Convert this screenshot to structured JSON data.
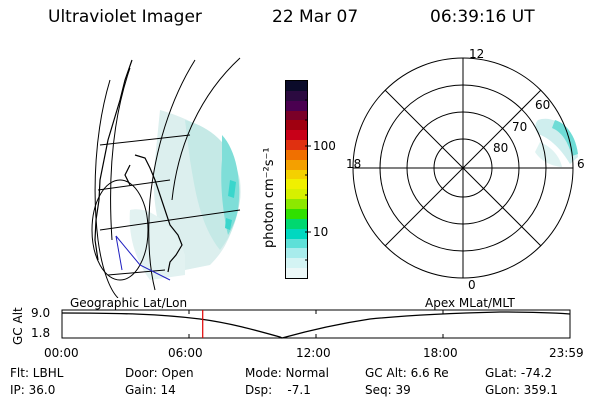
{
  "header": {
    "instrument": "Ultraviolet Imager",
    "date": "22 Mar 07",
    "time": "06:39:16 UT"
  },
  "colorbar": {
    "units_label": "photon cm⁻²s⁻¹",
    "ticks": [
      "100",
      "10"
    ],
    "colors": [
      "#0b0b2a",
      "#2b0a40",
      "#4a0050",
      "#7a0028",
      "#a00010",
      "#c80018",
      "#e03010",
      "#f07000",
      "#f4a000",
      "#f4d000",
      "#f0f000",
      "#d6f000",
      "#8ce800",
      "#30e000",
      "#00d870",
      "#00d8c0",
      "#5ee0d8",
      "#a8ecec",
      "#d4f4f4",
      "#ecf8f8"
    ]
  },
  "geo_map": {
    "label": "Geographic Lat/Lon"
  },
  "polar_map": {
    "label": "Apex MLat/MLT",
    "mlt_labels": [
      "12",
      "18",
      "6",
      "0"
    ],
    "lat_labels": [
      "60",
      "70",
      "80"
    ]
  },
  "orbit": {
    "y_title": "GC Alt",
    "y_ticks": [
      "9.0",
      "1.8"
    ],
    "x_ticks": [
      "00:00",
      "06:00",
      "12:00",
      "18:00",
      "23:59"
    ],
    "current_time_marker_fraction": 0.277
  },
  "status": {
    "row1": {
      "flt": "Flt: LBHL",
      "door": "Door: Open",
      "mode": "Mode: Normal",
      "gc_alt": "GC Alt: 6.6 Re",
      "glat": "GLat: -74.2"
    },
    "row2": {
      "ip": "IP: 36.0",
      "gain": "Gain: 14",
      "dsp": "Dsp:    -7.1",
      "seq": "Seq: 39",
      "glon": "GLon: 359.1"
    }
  }
}
